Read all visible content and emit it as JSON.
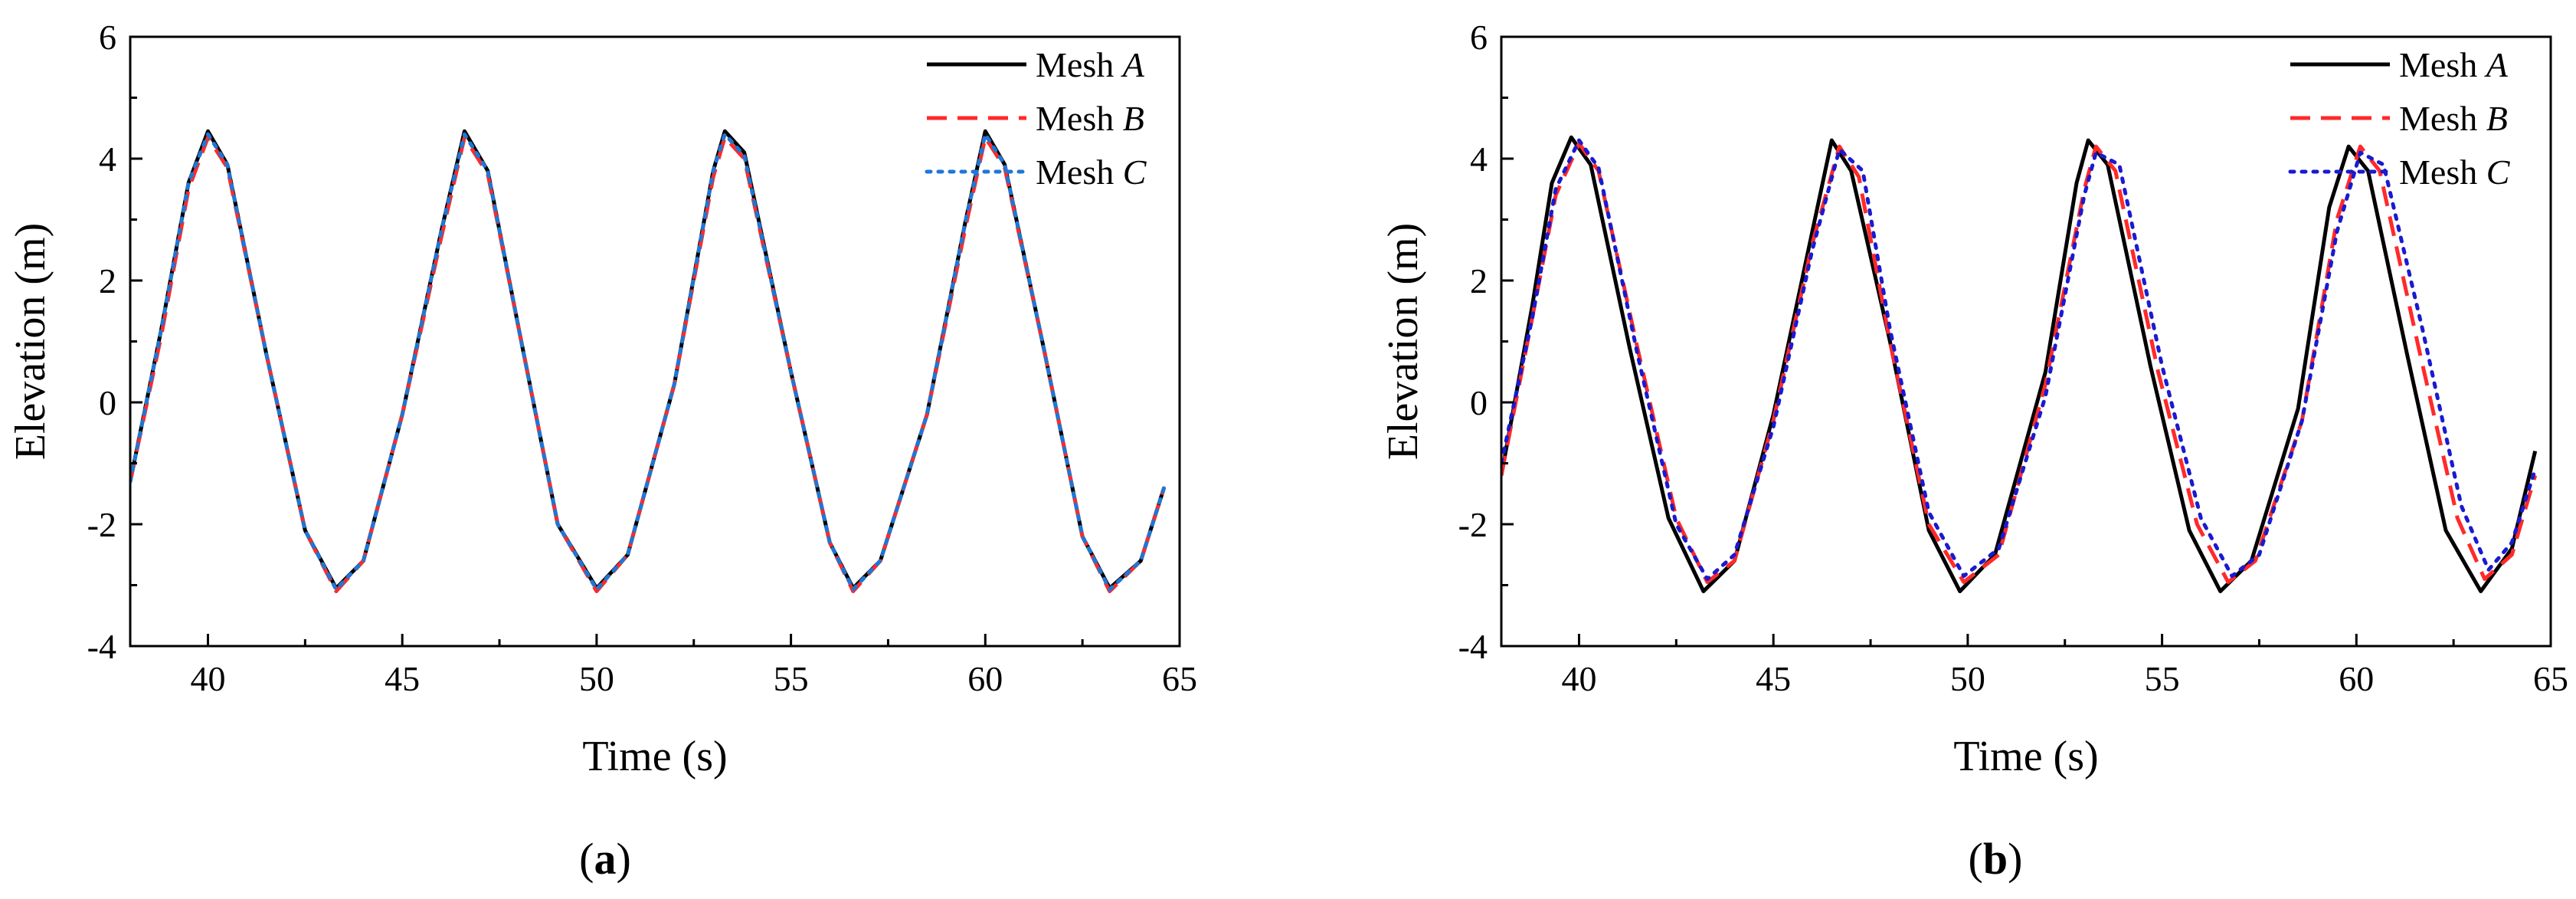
{
  "chart_data": [
    {
      "type": "line",
      "panel_label": "a",
      "xlabel": "Time (s)",
      "ylabel": "Elevation (m)",
      "xlim": [
        38,
        65
      ],
      "ylim": [
        -4,
        6
      ],
      "xticks": [
        40,
        45,
        50,
        55,
        60,
        65
      ],
      "yticks": [
        -4,
        -2,
        0,
        2,
        4,
        6
      ],
      "legend": {
        "position": "top-right",
        "prefix": "Mesh",
        "entries": [
          "A",
          "B",
          "C"
        ]
      },
      "series": [
        {
          "name": "Mesh A",
          "color": "#000000",
          "style": "solid",
          "x": [
            38,
            38.8,
            39.5,
            40,
            40.5,
            41.5,
            42.5,
            43.3,
            44,
            45,
            46,
            46.6,
            47.2,
            48,
            49,
            50,
            50.8,
            52,
            53,
            53.3,
            53.8,
            55,
            56,
            56.6,
            57.3,
            58.5,
            59.5,
            60,
            60.5,
            61.5,
            62.5,
            63.2,
            64,
            64.6
          ],
          "y": [
            -1.3,
            1.2,
            3.6,
            4.45,
            3.9,
            0.8,
            -2.1,
            -3.05,
            -2.6,
            -0.2,
            2.8,
            4.45,
            3.8,
            1.2,
            -2.0,
            -3.05,
            -2.5,
            0.3,
            3.8,
            4.45,
            4.1,
            0.5,
            -2.3,
            -3.05,
            -2.6,
            -0.2,
            3.0,
            4.45,
            3.9,
            0.9,
            -2.2,
            -3.05,
            -2.6,
            -1.4
          ]
        },
        {
          "name": "Mesh B",
          "color": "#ff2a2a",
          "style": "dashed",
          "x": [
            38,
            38.8,
            39.5,
            40,
            40.5,
            41.5,
            42.5,
            43.3,
            44,
            45,
            46,
            46.6,
            47.2,
            48,
            49,
            50,
            50.8,
            52,
            53,
            53.3,
            53.8,
            55,
            56,
            56.6,
            57.3,
            58.5,
            59.5,
            60,
            60.5,
            61.5,
            62.5,
            63.2,
            64,
            64.6
          ],
          "y": [
            -1.3,
            1.1,
            3.5,
            4.35,
            3.85,
            0.8,
            -2.1,
            -3.1,
            -2.6,
            -0.2,
            2.7,
            4.35,
            3.75,
            1.2,
            -2.0,
            -3.1,
            -2.5,
            0.3,
            3.7,
            4.35,
            4.0,
            0.5,
            -2.3,
            -3.1,
            -2.6,
            -0.2,
            2.9,
            4.35,
            3.85,
            0.9,
            -2.2,
            -3.1,
            -2.6,
            -1.4
          ]
        },
        {
          "name": "Mesh C",
          "color": "#1f77d4",
          "style": "dotted",
          "x": [
            38,
            38.8,
            39.5,
            40,
            40.5,
            41.5,
            42.5,
            43.3,
            44,
            45,
            46,
            46.6,
            47.2,
            48,
            49,
            50,
            50.8,
            52,
            53,
            53.3,
            53.8,
            55,
            56,
            56.6,
            57.3,
            58.5,
            59.5,
            60,
            60.5,
            61.5,
            62.5,
            63.2,
            64,
            64.6
          ],
          "y": [
            -1.3,
            1.2,
            3.6,
            4.4,
            3.9,
            0.8,
            -2.1,
            -3.07,
            -2.6,
            -0.2,
            2.8,
            4.4,
            3.8,
            1.2,
            -2.0,
            -3.07,
            -2.5,
            0.3,
            3.8,
            4.4,
            4.05,
            0.5,
            -2.3,
            -3.07,
            -2.6,
            -0.2,
            3.0,
            4.4,
            3.9,
            0.9,
            -2.2,
            -3.07,
            -2.6,
            -1.4
          ]
        }
      ]
    },
    {
      "type": "line",
      "panel_label": "b",
      "xlabel": "Time (s)",
      "ylabel": "Elevation (m)",
      "xlim": [
        38,
        65
      ],
      "ylim": [
        -4,
        6
      ],
      "xticks": [
        40,
        45,
        50,
        55,
        60,
        65
      ],
      "yticks": [
        -4,
        -2,
        0,
        2,
        4,
        6
      ],
      "legend": {
        "position": "top-right",
        "prefix": "Mesh",
        "entries": [
          "A",
          "B",
          "C"
        ]
      },
      "series": [
        {
          "name": "Mesh A",
          "color": "#000000",
          "style": "solid",
          "x": [
            38,
            38.8,
            39.3,
            39.8,
            40.3,
            41.3,
            42.3,
            43.2,
            44,
            45,
            46,
            46.5,
            47,
            48,
            49,
            49.8,
            50.7,
            52,
            52.8,
            53.1,
            53.6,
            54.7,
            55.7,
            56.5,
            57.3,
            58.5,
            59.3,
            59.8,
            60.3,
            61.3,
            62.3,
            63.2,
            64,
            64.6
          ],
          "y": [
            -1.2,
            1.6,
            3.6,
            4.35,
            3.9,
            0.9,
            -1.9,
            -3.1,
            -2.6,
            -0.2,
            2.8,
            4.3,
            3.8,
            1.0,
            -2.1,
            -3.1,
            -2.5,
            0.5,
            3.6,
            4.3,
            3.9,
            0.6,
            -2.1,
            -3.1,
            -2.6,
            -0.1,
            3.2,
            4.2,
            3.8,
            0.8,
            -2.1,
            -3.1,
            -2.4,
            -0.8
          ]
        },
        {
          "name": "Mesh B",
          "color": "#ff2a2a",
          "style": "dashed",
          "x": [
            38,
            38.8,
            39.4,
            40,
            40.5,
            41.5,
            42.5,
            43.3,
            44,
            45,
            46,
            46.7,
            47.2,
            48,
            49,
            49.9,
            50.8,
            52,
            53,
            53.3,
            53.8,
            54.9,
            55.9,
            56.7,
            57.4,
            58.6,
            59.5,
            60.1,
            60.6,
            61.6,
            62.6,
            63.3,
            64,
            64.6
          ],
          "y": [
            -1.2,
            1.4,
            3.4,
            4.25,
            3.8,
            0.9,
            -1.9,
            -2.95,
            -2.6,
            -0.3,
            2.6,
            4.2,
            3.7,
            1.0,
            -2.0,
            -2.95,
            -2.5,
            0.3,
            3.5,
            4.2,
            3.8,
            0.5,
            -2.0,
            -2.95,
            -2.6,
            -0.3,
            3.0,
            4.2,
            3.8,
            0.9,
            -1.9,
            -2.9,
            -2.5,
            -1.2
          ]
        },
        {
          "name": "Mesh C",
          "color": "#1a1ad0",
          "style": "dotted",
          "x": [
            38,
            38.8,
            39.4,
            40,
            40.5,
            41.5,
            42.5,
            43.3,
            44,
            45,
            46,
            46.7,
            47.3,
            48,
            49,
            49.9,
            50.8,
            52,
            53,
            53.3,
            53.9,
            55,
            56,
            56.8,
            57.5,
            58.6,
            59.5,
            60.1,
            60.7,
            61.7,
            62.7,
            63.4,
            64,
            64.6
          ],
          "y": [
            -1.0,
            1.4,
            3.5,
            4.3,
            3.85,
            0.8,
            -2.0,
            -2.9,
            -2.5,
            -0.4,
            2.5,
            4.15,
            3.8,
            1.2,
            -1.8,
            -2.85,
            -2.4,
            0.1,
            3.4,
            4.1,
            3.9,
            0.6,
            -1.9,
            -2.85,
            -2.5,
            -0.3,
            2.8,
            4.1,
            3.9,
            1.2,
            -1.7,
            -2.75,
            -2.3,
            -1.1
          ]
        }
      ]
    }
  ]
}
